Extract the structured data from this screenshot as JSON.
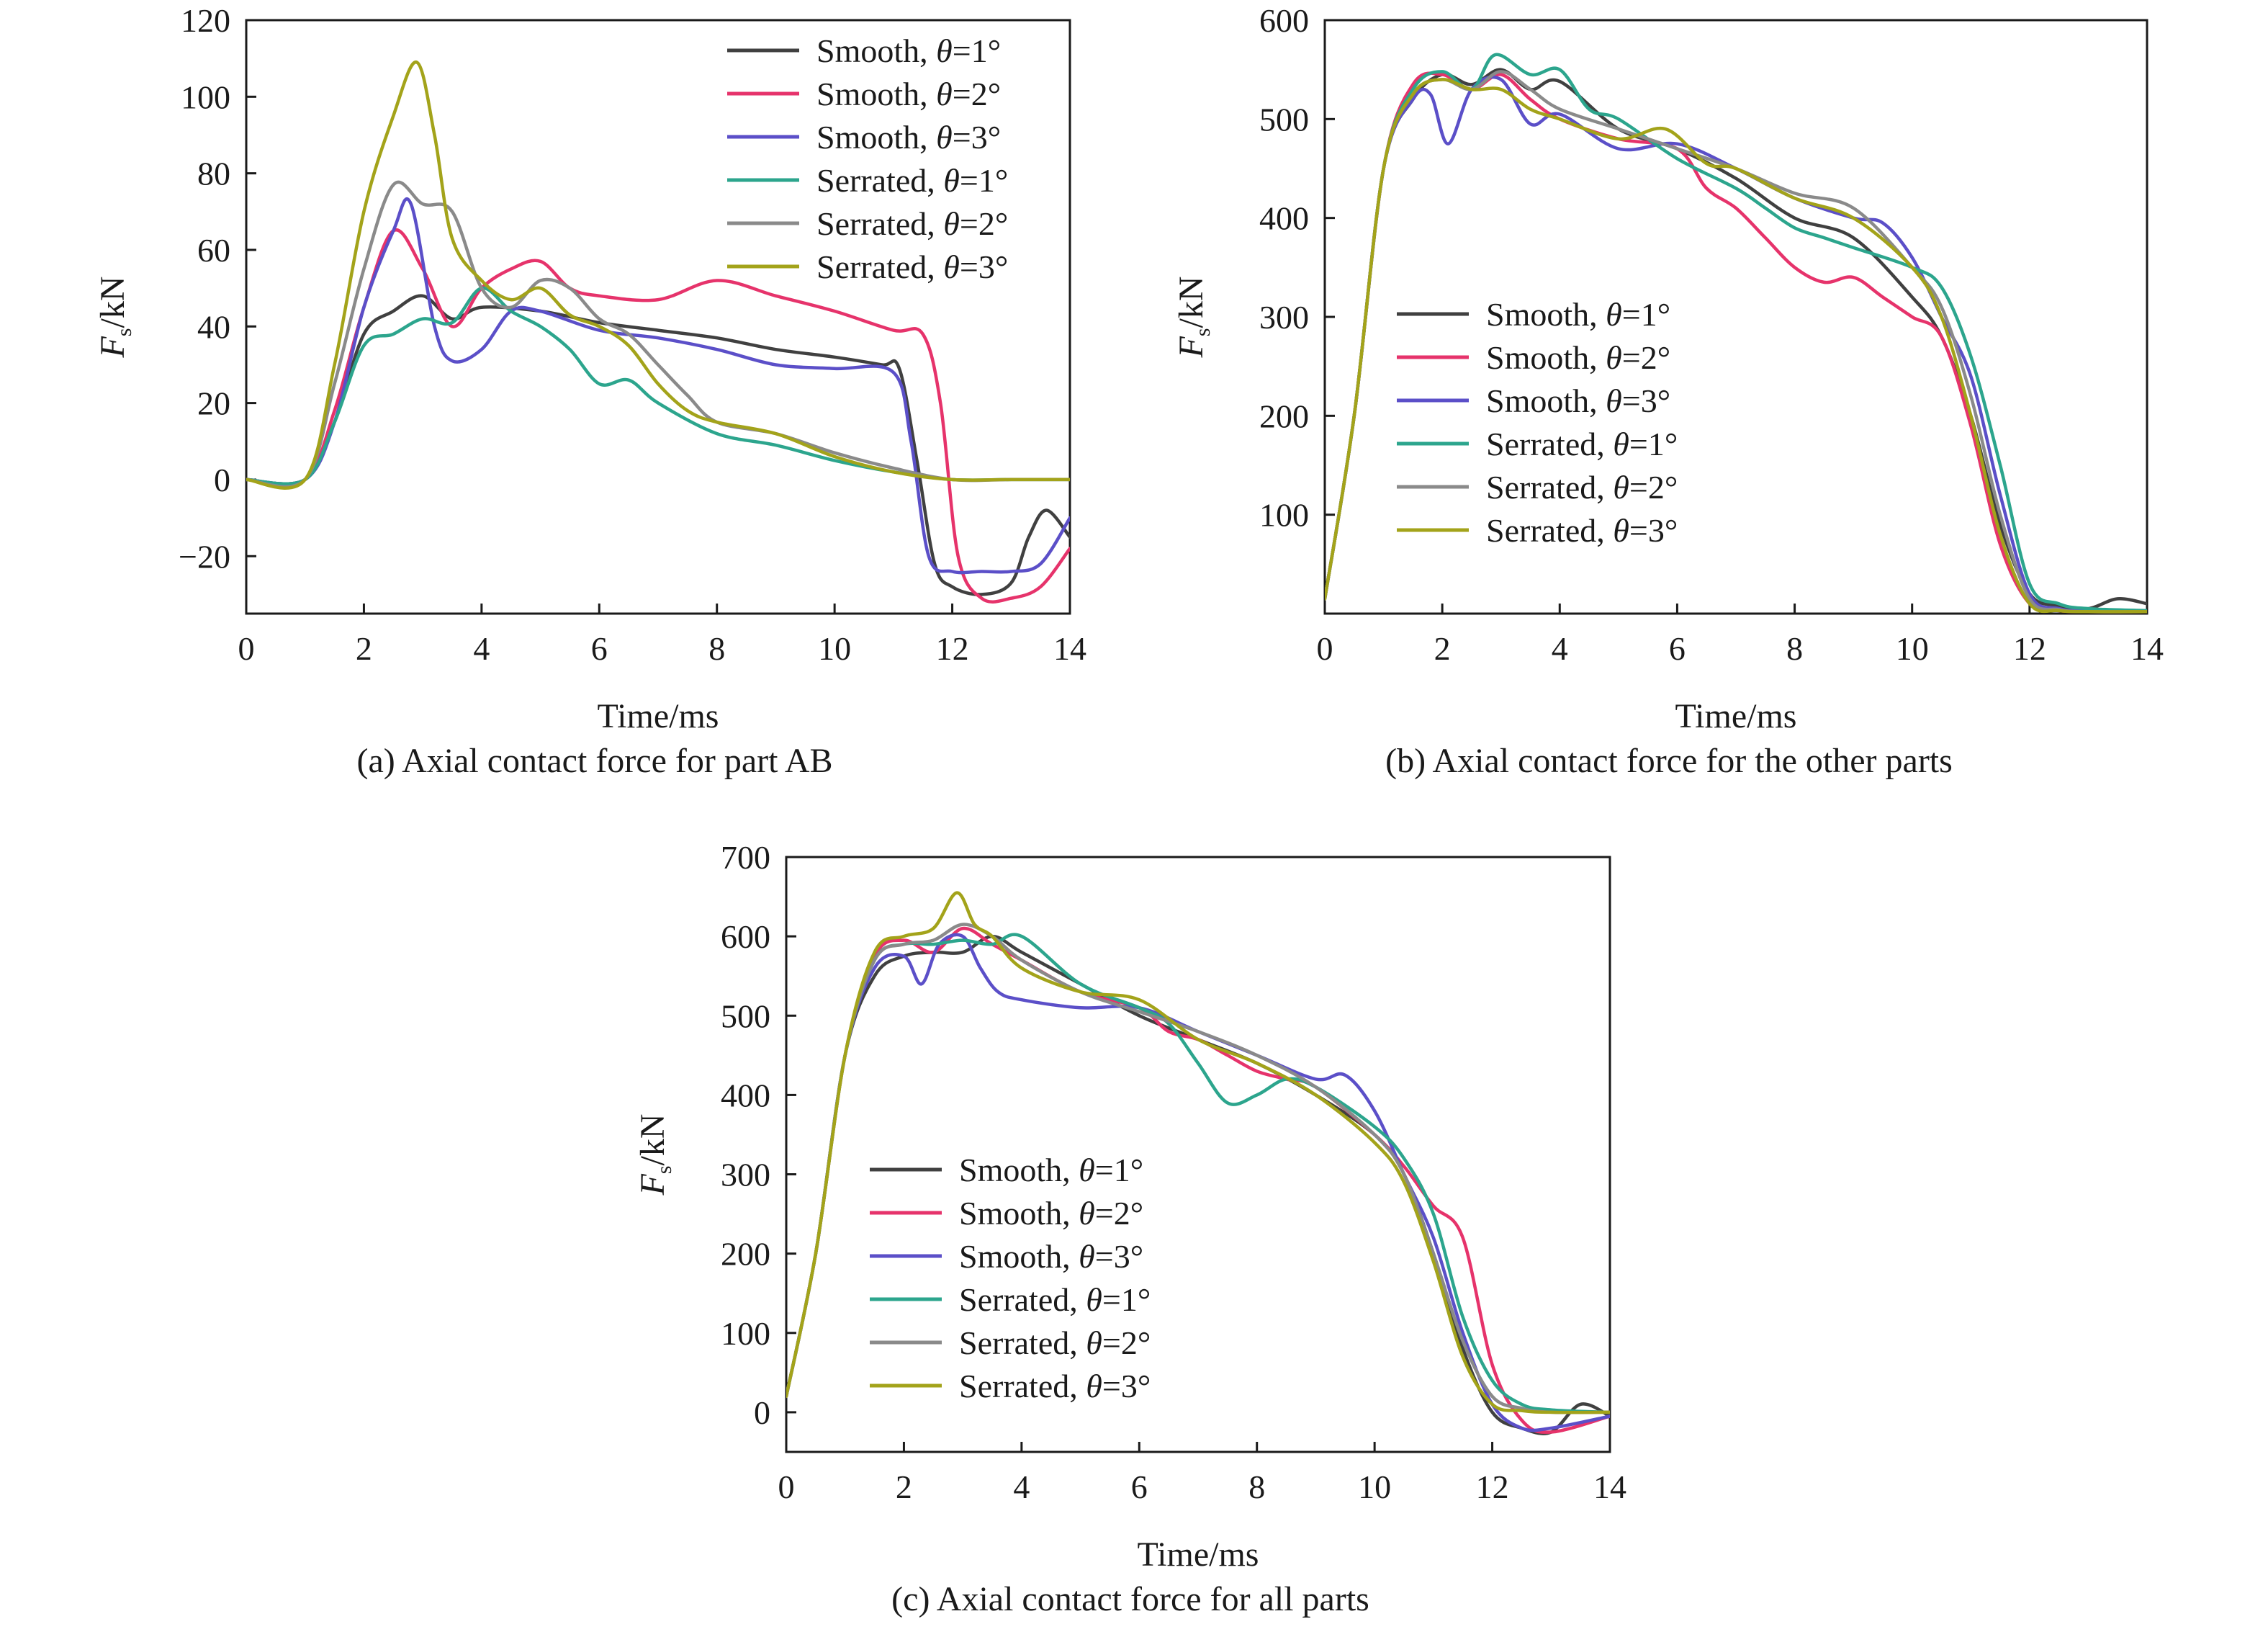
{
  "colors": {
    "smooth_1": "#404040",
    "smooth_2": "#e6336b",
    "smooth_3": "#5b4fc8",
    "serrated_1": "#2ca58d",
    "serrated_2": "#8a8a8a",
    "serrated_3": "#a3a31a"
  },
  "chart_data": [
    {
      "id": "a",
      "type": "line",
      "caption": "(a) Axial contact force for part AB",
      "title": "",
      "xlabel": "Time/ms",
      "ylabel_main": "F",
      "ylabel_sub": "s",
      "ylabel_unit": "/kN",
      "xlim": [
        0,
        14
      ],
      "ylim": [
        -35,
        120
      ],
      "xticks": [
        0,
        2,
        4,
        6,
        8,
        10,
        12,
        14
      ],
      "yticks": [
        -20,
        0,
        20,
        40,
        60,
        80,
        100,
        120
      ],
      "ytick_labels": [
        "−20",
        "0",
        "20",
        "40",
        "60",
        "80",
        "100",
        "120"
      ],
      "legend_position": "top-right",
      "series": [
        {
          "name": "Smooth, ",
          "theta": "θ=1°",
          "color_key": "smooth_1",
          "x": [
            0,
            1,
            1.5,
            2,
            2.5,
            3,
            3.5,
            4,
            5,
            6,
            7,
            8,
            9,
            10,
            10.8,
            11.1,
            11.4,
            11.7,
            12,
            12.5,
            13,
            13.3,
            13.6,
            14
          ],
          "y": [
            0,
            0,
            15,
            38,
            44,
            48,
            42,
            45,
            44,
            41,
            39,
            37,
            34,
            32,
            30,
            29,
            5,
            -22,
            -28,
            -30,
            -27,
            -15,
            -8,
            -15
          ]
        },
        {
          "name": "Smooth, ",
          "theta": "θ=2°",
          "color_key": "smooth_2",
          "x": [
            0,
            1,
            1.5,
            2,
            2.5,
            3,
            3.5,
            4,
            4.5,
            5,
            5.5,
            6,
            7,
            8,
            9,
            10,
            11,
            11.5,
            11.8,
            12.1,
            12.5,
            13,
            13.5,
            14
          ],
          "y": [
            0,
            0,
            18,
            45,
            65,
            55,
            40,
            50,
            55,
            57,
            50,
            48,
            47,
            52,
            48,
            44,
            39,
            38,
            20,
            -20,
            -31,
            -31,
            -28,
            -18
          ]
        },
        {
          "name": "Smooth, ",
          "theta": "θ=3°",
          "color_key": "smooth_3",
          "x": [
            0,
            1,
            1.5,
            2,
            2.5,
            2.8,
            3.2,
            3.5,
            4,
            4.5,
            5,
            6,
            7,
            8,
            9,
            10,
            11,
            11.3,
            11.6,
            12,
            12.5,
            13,
            13.5,
            14
          ],
          "y": [
            0,
            0,
            15,
            45,
            65,
            72,
            40,
            31,
            34,
            44,
            44,
            39,
            37,
            34,
            30,
            29,
            28,
            10,
            -20,
            -24,
            -24,
            -24,
            -22,
            -10
          ]
        },
        {
          "name": "Serrated, ",
          "theta": "θ=1°",
          "color_key": "serrated_1",
          "x": [
            0,
            1,
            1.5,
            2,
            2.5,
            3,
            3.5,
            4,
            4.5,
            5,
            5.5,
            6,
            6.5,
            7,
            8,
            9,
            10,
            11,
            12,
            13,
            14
          ],
          "y": [
            0,
            0,
            15,
            35,
            38,
            42,
            41,
            50,
            44,
            40,
            34,
            25,
            26,
            20,
            12,
            9,
            5,
            2,
            0,
            0,
            0
          ]
        },
        {
          "name": "Serrated, ",
          "theta": "θ=2°",
          "color_key": "serrated_2",
          "x": [
            0,
            1,
            1.5,
            2,
            2.5,
            3,
            3.5,
            4,
            4.5,
            5,
            5.5,
            6,
            6.5,
            7,
            7.5,
            8,
            9,
            10,
            11,
            12,
            13,
            14
          ],
          "y": [
            0,
            0,
            25,
            55,
            77,
            72,
            70,
            50,
            45,
            52,
            50,
            42,
            38,
            30,
            22,
            15,
            12,
            7,
            3,
            0,
            0,
            0
          ]
        },
        {
          "name": "Serrated, ",
          "theta": "θ=3°",
          "color_key": "serrated_3",
          "x": [
            0,
            1,
            1.5,
            2,
            2.5,
            2.9,
            3.2,
            3.5,
            4,
            4.5,
            5,
            5.5,
            6,
            6.5,
            7,
            7.5,
            8,
            9,
            10,
            11,
            12,
            13,
            14
          ],
          "y": [
            0,
            0,
            30,
            70,
            95,
            109,
            90,
            63,
            52,
            47,
            50,
            43,
            40,
            35,
            25,
            18,
            15,
            12,
            6,
            2,
            0,
            0,
            0
          ]
        }
      ]
    },
    {
      "id": "b",
      "type": "line",
      "caption": "(b) Axial contact force for the other parts",
      "title": "",
      "xlabel": "Time/ms",
      "ylabel_main": "F",
      "ylabel_sub": "s",
      "ylabel_unit": "/kN",
      "xlim": [
        0,
        14
      ],
      "ylim": [
        0,
        600
      ],
      "xticks": [
        0,
        2,
        4,
        6,
        8,
        10,
        12,
        14
      ],
      "yticks": [
        100,
        200,
        300,
        400,
        500,
        600
      ],
      "ytick_labels": [
        "100",
        "200",
        "300",
        "400",
        "500",
        "600"
      ],
      "legend_position": "middle-left",
      "series": [
        {
          "name": "Smooth, ",
          "theta": "θ=1°",
          "color_key": "smooth_1",
          "x": [
            0,
            0.5,
            1,
            1.5,
            2,
            2.5,
            3,
            3.5,
            4,
            5,
            6,
            7,
            8,
            9,
            10,
            10.5,
            11,
            11.5,
            12,
            12.5,
            13,
            13.5,
            14
          ],
          "y": [
            15,
            200,
            450,
            520,
            545,
            535,
            550,
            530,
            538,
            490,
            470,
            440,
            400,
            380,
            320,
            280,
            200,
            90,
            20,
            8,
            5,
            15,
            10
          ]
        },
        {
          "name": "Smooth, ",
          "theta": "θ=2°",
          "color_key": "smooth_2",
          "x": [
            0,
            0.5,
            1,
            1.5,
            2,
            2.5,
            3,
            3.5,
            4,
            5,
            6,
            6.5,
            7,
            7.5,
            8,
            8.5,
            9,
            9.5,
            10,
            10.5,
            11,
            11.5,
            12,
            12.5,
            13,
            14
          ],
          "y": [
            15,
            200,
            450,
            535,
            545,
            530,
            545,
            520,
            500,
            480,
            470,
            430,
            410,
            380,
            350,
            335,
            340,
            320,
            300,
            280,
            190,
            70,
            10,
            3,
            2,
            2
          ]
        },
        {
          "name": "Smooth, ",
          "theta": "θ=3°",
          "color_key": "smooth_3",
          "x": [
            0,
            0.5,
            1,
            1.5,
            1.8,
            2.1,
            2.5,
            3,
            3.5,
            4,
            5,
            6,
            7,
            8,
            9,
            9.5,
            10,
            10.5,
            11,
            11.5,
            12,
            12.5,
            13,
            14
          ],
          "y": [
            15,
            200,
            450,
            520,
            525,
            475,
            530,
            540,
            495,
            505,
            470,
            475,
            450,
            420,
            400,
            395,
            360,
            300,
            240,
            120,
            20,
            5,
            3,
            2
          ]
        },
        {
          "name": "Serrated, ",
          "theta": "θ=1°",
          "color_key": "serrated_1",
          "x": [
            0,
            0.5,
            1,
            1.5,
            2,
            2.5,
            2.9,
            3.5,
            4,
            4.5,
            5,
            6,
            7,
            7.5,
            8,
            8.5,
            9,
            10,
            10.5,
            11,
            11.5,
            12,
            12.5,
            13,
            14
          ],
          "y": [
            15,
            200,
            450,
            530,
            548,
            530,
            565,
            545,
            550,
            510,
            500,
            460,
            430,
            410,
            390,
            380,
            370,
            350,
            330,
            260,
            150,
            30,
            10,
            5,
            3
          ]
        },
        {
          "name": "Serrated, ",
          "theta": "θ=2°",
          "color_key": "serrated_2",
          "x": [
            0,
            0.5,
            1,
            1.5,
            2,
            2.5,
            3,
            3.5,
            4,
            5,
            6,
            7,
            8,
            9,
            10,
            10.5,
            11,
            11.5,
            12,
            12.5,
            13,
            14
          ],
          "y": [
            15,
            200,
            450,
            525,
            540,
            530,
            548,
            530,
            510,
            490,
            470,
            450,
            425,
            410,
            350,
            310,
            220,
            100,
            15,
            4,
            2,
            2
          ]
        },
        {
          "name": "Serrated, ",
          "theta": "θ=3°",
          "color_key": "serrated_3",
          "x": [
            0,
            0.5,
            1,
            1.5,
            2,
            2.5,
            3,
            3.5,
            4,
            5,
            5.8,
            6.5,
            7,
            8,
            9,
            10,
            10.5,
            11,
            11.5,
            12,
            12.5,
            13,
            14
          ],
          "y": [
            15,
            200,
            450,
            525,
            540,
            530,
            530,
            510,
            500,
            480,
            490,
            455,
            450,
            420,
            400,
            350,
            300,
            200,
            80,
            10,
            3,
            2,
            2
          ]
        }
      ]
    },
    {
      "id": "c",
      "type": "line",
      "caption": "(c) Axial contact force for all parts",
      "title": "",
      "xlabel": "Time/ms",
      "ylabel_main": "F",
      "ylabel_sub": "s",
      "ylabel_unit": "/kN",
      "xlim": [
        0,
        14
      ],
      "ylim": [
        -50,
        700
      ],
      "xticks": [
        0,
        2,
        4,
        6,
        8,
        10,
        12,
        14
      ],
      "yticks": [
        0,
        100,
        200,
        300,
        400,
        500,
        600,
        700
      ],
      "ytick_labels": [
        "0",
        "100",
        "200",
        "300",
        "400",
        "500",
        "600",
        "700"
      ],
      "legend_position": "middle-left",
      "series": [
        {
          "name": "Smooth, ",
          "theta": "θ=1°",
          "color_key": "smooth_1",
          "x": [
            0,
            0.5,
            1,
            1.5,
            2,
            2.5,
            3,
            3.5,
            4,
            5,
            6,
            7,
            8,
            9,
            10,
            10.5,
            11,
            11.5,
            12,
            12.5,
            13,
            13.5,
            14
          ],
          "y": [
            20,
            200,
            450,
            550,
            575,
            580,
            580,
            600,
            580,
            540,
            500,
            470,
            440,
            400,
            350,
            300,
            200,
            80,
            0,
            -20,
            -25,
            10,
            -5
          ]
        },
        {
          "name": "Smooth, ",
          "theta": "θ=2°",
          "color_key": "smooth_2",
          "x": [
            0,
            0.5,
            1,
            1.5,
            2,
            2.5,
            3,
            3.5,
            4,
            5,
            6,
            6.5,
            7,
            7.5,
            8,
            8.5,
            9,
            10,
            10.5,
            11,
            11.5,
            12,
            12.5,
            13,
            14
          ],
          "y": [
            20,
            200,
            450,
            575,
            595,
            580,
            610,
            590,
            570,
            530,
            510,
            480,
            470,
            450,
            430,
            420,
            410,
            350,
            310,
            260,
            220,
            60,
            -10,
            -25,
            -5
          ]
        },
        {
          "name": "Smooth, ",
          "theta": "θ=3°",
          "color_key": "smooth_3",
          "x": [
            0,
            0.5,
            1,
            1.5,
            2,
            2.3,
            2.6,
            3,
            3.3,
            3.6,
            4,
            5,
            6,
            7,
            8,
            9,
            9.5,
            10,
            10.5,
            11,
            11.5,
            12,
            12.5,
            13,
            14
          ],
          "y": [
            20,
            200,
            450,
            560,
            575,
            540,
            590,
            600,
            560,
            530,
            520,
            510,
            510,
            480,
            450,
            420,
            425,
            380,
            300,
            220,
            100,
            10,
            -20,
            -20,
            -5
          ]
        },
        {
          "name": "Serrated, ",
          "theta": "θ=1°",
          "color_key": "serrated_1",
          "x": [
            0,
            0.5,
            1,
            1.5,
            2,
            2.5,
            3,
            3.5,
            4,
            5,
            6,
            6.5,
            7,
            7.5,
            8,
            8.5,
            9,
            10,
            10.5,
            11,
            11.5,
            12,
            12.5,
            13,
            14
          ],
          "y": [
            20,
            200,
            450,
            570,
            590,
            590,
            595,
            590,
            600,
            540,
            510,
            490,
            440,
            390,
            400,
            420,
            410,
            360,
            320,
            250,
            120,
            40,
            10,
            3,
            0
          ]
        },
        {
          "name": "Serrated, ",
          "theta": "θ=2°",
          "color_key": "serrated_2",
          "x": [
            0,
            0.5,
            1,
            1.5,
            2,
            2.5,
            3,
            3.5,
            4,
            5,
            6,
            7,
            8,
            9,
            10,
            10.5,
            11,
            11.5,
            12,
            12.5,
            13,
            14
          ],
          "y": [
            20,
            200,
            450,
            570,
            590,
            595,
            615,
            600,
            570,
            530,
            505,
            480,
            450,
            410,
            350,
            300,
            200,
            90,
            20,
            5,
            0,
            0
          ]
        },
        {
          "name": "Serrated, ",
          "theta": "θ=3°",
          "color_key": "serrated_3",
          "x": [
            0,
            0.5,
            1,
            1.5,
            2,
            2.5,
            2.9,
            3.2,
            3.5,
            4,
            5,
            6,
            7,
            8,
            9,
            10,
            10.5,
            11,
            11.5,
            12,
            12.5,
            13,
            14
          ],
          "y": [
            20,
            200,
            450,
            580,
            600,
            610,
            655,
            615,
            600,
            560,
            530,
            520,
            470,
            440,
            400,
            340,
            290,
            190,
            70,
            10,
            2,
            0,
            0
          ]
        }
      ]
    }
  ]
}
